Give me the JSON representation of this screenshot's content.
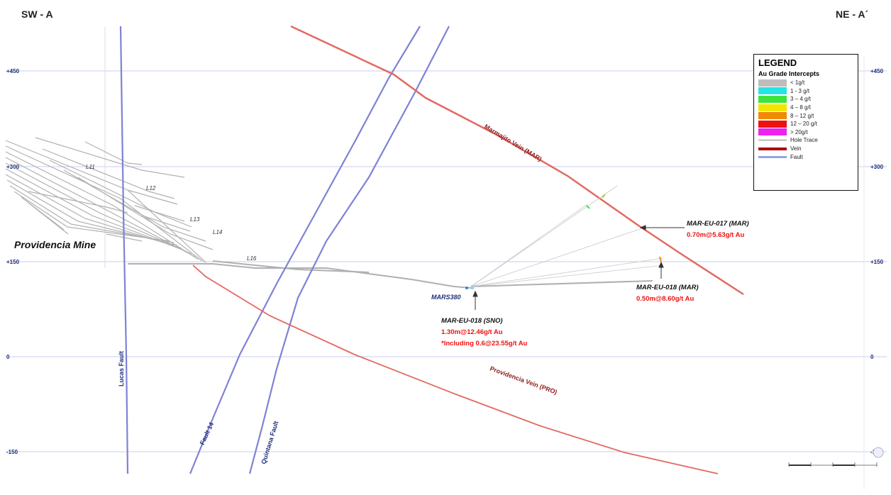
{
  "section_labels": {
    "left": "SW - A",
    "right": "NE - A´"
  },
  "elevations": [
    {
      "label": "+450",
      "value": 450
    },
    {
      "label": "+300",
      "value": 300
    },
    {
      "label": "+150",
      "value": 150
    },
    {
      "label": "0",
      "value": 0
    },
    {
      "label": "-150",
      "value": -150
    }
  ],
  "mine_label": "Providencia Mine",
  "levels": [
    "L11",
    "L12",
    "L13",
    "L14",
    "L16"
  ],
  "faults": [
    "Lucas Fault",
    "Fault 14",
    "Quintana Fault"
  ],
  "veins": [
    "Marmajito Vein (MAR)",
    "Providencia Vein (PRO)"
  ],
  "drill_station": "MARS380",
  "intercepts": [
    {
      "hole": "MAR-EU-017 (MAR)",
      "lines": [
        "0.70m@5.63g/t Au"
      ]
    },
    {
      "hole": "MAR-EU-018 (MAR)",
      "lines": [
        "0.50m@8.60g/t Au"
      ]
    },
    {
      "hole": "MAR-EU-018 (SNO)",
      "lines": [
        "1.30m@12.46g/t Au",
        "*Including 0.6@23.55g/t Au"
      ]
    }
  ],
  "legend": {
    "title": "LEGEND",
    "subtitle": "Au Grade Intercepts",
    "grades": [
      {
        "label": "< 1g/t",
        "color": "#bdbdbd"
      },
      {
        "label": "1 - 3 g/t",
        "color": "#22e6e6"
      },
      {
        "label": "3 – 4 g/t",
        "color": "#3ee43e"
      },
      {
        "label": "4 – 8 g/t",
        "color": "#f2e600"
      },
      {
        "label": "8 – 12 g/t",
        "color": "#f08a00"
      },
      {
        "label": "12 – 20 g/t",
        "color": "#ee1111"
      },
      {
        "label": "> 20g/t",
        "color": "#ee22ee"
      }
    ],
    "hole_trace": "Hole Trace",
    "vein": "Vein",
    "fault": "Fault"
  },
  "colors": {
    "vein": "#e26a62",
    "fault": "#7d82d6",
    "intercept_text": "#ee1111",
    "grid": "#c9cdf0",
    "elev_label": "#1f2f7a"
  }
}
